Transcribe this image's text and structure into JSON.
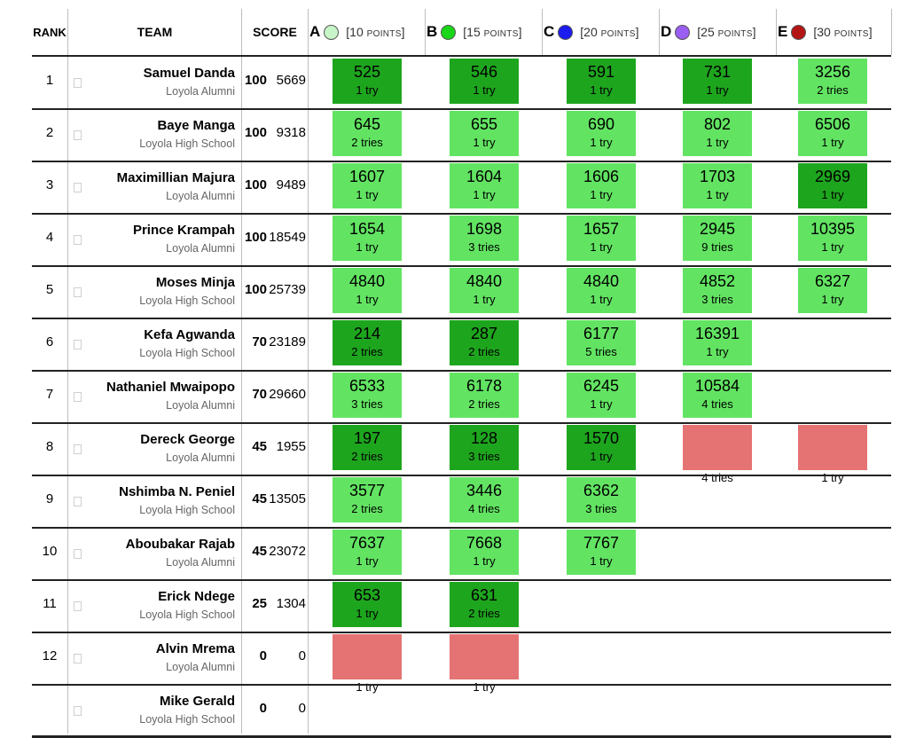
{
  "headers": {
    "rank": "RANK",
    "team": "TEAM",
    "score": "SCORE"
  },
  "points_word": "POINTS",
  "problems": [
    {
      "letter": "A",
      "points": "10",
      "color": "#c8f5c8",
      "color_name": "light-green"
    },
    {
      "letter": "B",
      "points": "15",
      "color": "#19d619",
      "color_name": "green"
    },
    {
      "letter": "C",
      "points": "20",
      "color": "#1c1cf0",
      "color_name": "blue"
    },
    {
      "letter": "D",
      "points": "25",
      "color": "#9b5ef2",
      "color_name": "purple"
    },
    {
      "letter": "E",
      "points": "30",
      "color": "#b31515",
      "color_name": "red"
    }
  ],
  "status_colors": {
    "first_solve": "#1ea51e",
    "solved": "#62e462",
    "rejected": "#e57373"
  },
  "teams": [
    {
      "rank": "1",
      "name": "Samuel Danda",
      "school": "Loyola Alumni",
      "solved": "100",
      "penalty": "5669",
      "cells": [
        {
          "time": "525",
          "tries": "1 try",
          "status": "first"
        },
        {
          "time": "546",
          "tries": "1 try",
          "status": "first"
        },
        {
          "time": "591",
          "tries": "1 try",
          "status": "first"
        },
        {
          "time": "731",
          "tries": "1 try",
          "status": "first"
        },
        {
          "time": "3256",
          "tries": "2 tries",
          "status": "ok"
        }
      ]
    },
    {
      "rank": "2",
      "name": "Baye Manga",
      "school": "Loyola High School",
      "solved": "100",
      "penalty": "9318",
      "cells": [
        {
          "time": "645",
          "tries": "2 tries",
          "status": "ok"
        },
        {
          "time": "655",
          "tries": "1 try",
          "status": "ok"
        },
        {
          "time": "690",
          "tries": "1 try",
          "status": "ok"
        },
        {
          "time": "802",
          "tries": "1 try",
          "status": "ok"
        },
        {
          "time": "6506",
          "tries": "1 try",
          "status": "ok"
        }
      ]
    },
    {
      "rank": "3",
      "name": "Maximillian Majura",
      "school": "Loyola Alumni",
      "solved": "100",
      "penalty": "9489",
      "cells": [
        {
          "time": "1607",
          "tries": "1 try",
          "status": "ok"
        },
        {
          "time": "1604",
          "tries": "1 try",
          "status": "ok"
        },
        {
          "time": "1606",
          "tries": "1 try",
          "status": "ok"
        },
        {
          "time": "1703",
          "tries": "1 try",
          "status": "ok"
        },
        {
          "time": "2969",
          "tries": "1 try",
          "status": "first"
        }
      ]
    },
    {
      "rank": "4",
      "name": "Prince Krampah",
      "school": "Loyola Alumni",
      "solved": "100",
      "penalty": "18549",
      "cells": [
        {
          "time": "1654",
          "tries": "1 try",
          "status": "ok"
        },
        {
          "time": "1698",
          "tries": "3 tries",
          "status": "ok"
        },
        {
          "time": "1657",
          "tries": "1 try",
          "status": "ok"
        },
        {
          "time": "2945",
          "tries": "9 tries",
          "status": "ok"
        },
        {
          "time": "10395",
          "tries": "1 try",
          "status": "ok"
        }
      ]
    },
    {
      "rank": "5",
      "name": "Moses Minja",
      "school": "Loyola High School",
      "solved": "100",
      "penalty": "25739",
      "cells": [
        {
          "time": "4840",
          "tries": "1 try",
          "status": "ok"
        },
        {
          "time": "4840",
          "tries": "1 try",
          "status": "ok"
        },
        {
          "time": "4840",
          "tries": "1 try",
          "status": "ok"
        },
        {
          "time": "4852",
          "tries": "3 tries",
          "status": "ok"
        },
        {
          "time": "6327",
          "tries": "1 try",
          "status": "ok"
        }
      ]
    },
    {
      "rank": "6",
      "name": "Kefa Agwanda",
      "school": "Loyola High School",
      "solved": "70",
      "penalty": "23189",
      "cells": [
        {
          "time": "214",
          "tries": "2 tries",
          "status": "first"
        },
        {
          "time": "287",
          "tries": "2 tries",
          "status": "first"
        },
        {
          "time": "6177",
          "tries": "5 tries",
          "status": "ok"
        },
        {
          "time": "16391",
          "tries": "1 try",
          "status": "ok"
        },
        null
      ]
    },
    {
      "rank": "7",
      "name": "Nathaniel Mwaipopo",
      "school": "Loyola Alumni",
      "solved": "70",
      "penalty": "29660",
      "cells": [
        {
          "time": "6533",
          "tries": "3 tries",
          "status": "ok"
        },
        {
          "time": "6178",
          "tries": "2 tries",
          "status": "ok"
        },
        {
          "time": "6245",
          "tries": "1 try",
          "status": "ok"
        },
        {
          "time": "10584",
          "tries": "4 tries",
          "status": "ok"
        },
        null
      ]
    },
    {
      "rank": "8",
      "name": "Dereck George",
      "school": "Loyola Alumni",
      "solved": "45",
      "penalty": "1955",
      "cells": [
        {
          "time": "197",
          "tries": "2 tries",
          "status": "first"
        },
        {
          "time": "128",
          "tries": "3 tries",
          "status": "first"
        },
        {
          "time": "1570",
          "tries": "1 try",
          "status": "first"
        },
        {
          "time": "",
          "tries": "4 tries",
          "status": "bad"
        },
        {
          "time": "",
          "tries": "1 try",
          "status": "bad"
        }
      ]
    },
    {
      "rank": "9",
      "name": "Nshimba N. Peniel",
      "school": "Loyola High School",
      "solved": "45",
      "penalty": "13505",
      "cells": [
        {
          "time": "3577",
          "tries": "2 tries",
          "status": "ok"
        },
        {
          "time": "3446",
          "tries": "4 tries",
          "status": "ok"
        },
        {
          "time": "6362",
          "tries": "3 tries",
          "status": "ok"
        },
        null,
        null
      ]
    },
    {
      "rank": "10",
      "name": "Aboubakar Rajab",
      "school": "Loyola Alumni",
      "solved": "45",
      "penalty": "23072",
      "cells": [
        {
          "time": "7637",
          "tries": "1 try",
          "status": "ok"
        },
        {
          "time": "7668",
          "tries": "1 try",
          "status": "ok"
        },
        {
          "time": "7767",
          "tries": "1 try",
          "status": "ok"
        },
        null,
        null
      ]
    },
    {
      "rank": "11",
      "name": "Erick Ndege",
      "school": "Loyola High School",
      "solved": "25",
      "penalty": "1304",
      "cells": [
        {
          "time": "653",
          "tries": "1 try",
          "status": "first"
        },
        {
          "time": "631",
          "tries": "2 tries",
          "status": "first"
        },
        null,
        null,
        null
      ]
    },
    {
      "rank": "12",
      "name": "Alvin Mrema",
      "school": "Loyola Alumni",
      "solved": "0",
      "penalty": "0",
      "cells": [
        {
          "time": "",
          "tries": "1 try",
          "status": "bad"
        },
        {
          "time": "",
          "tries": "1 try",
          "status": "bad"
        },
        null,
        null,
        null
      ]
    },
    {
      "rank": "",
      "name": "Mike Gerald",
      "school": "Loyola High School",
      "solved": "0",
      "penalty": "0",
      "cells": [
        null,
        null,
        null,
        null,
        null
      ]
    }
  ]
}
